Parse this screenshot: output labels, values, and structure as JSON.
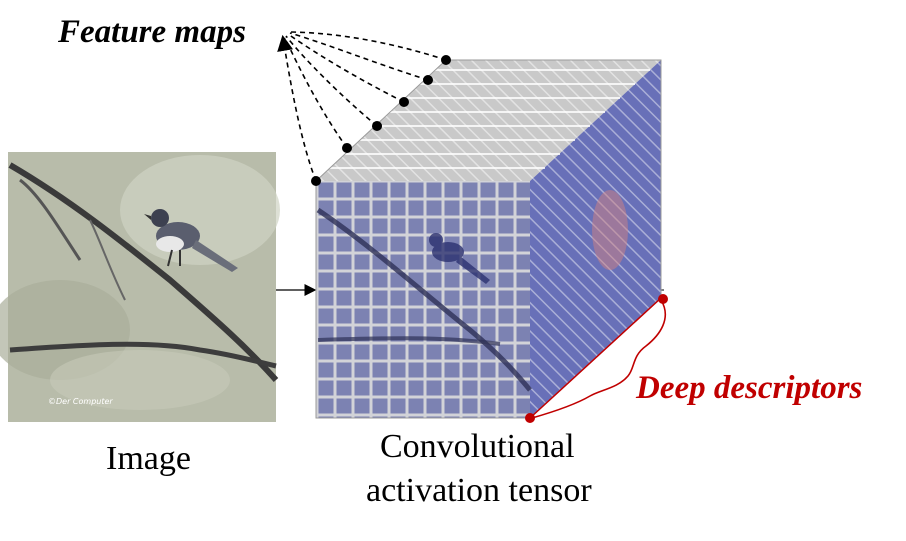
{
  "labels": {
    "feature_maps": "Feature maps",
    "deep_descriptors": "Deep descriptors",
    "image": "Image",
    "tensor_line1": "Convolutional",
    "tensor_line2": "activation tensor",
    "watermark": "©Der Computer"
  },
  "colors": {
    "text": "#000000",
    "accent_red": "#c00000",
    "photo_bg": "#b7bba9",
    "branch": "#3a3a3a",
    "tensor_blue": "#5a63b8",
    "tensor_grid": "#d8d8d8"
  },
  "icons": {
    "bird": "bird-photo",
    "dot": "circle-marker"
  }
}
